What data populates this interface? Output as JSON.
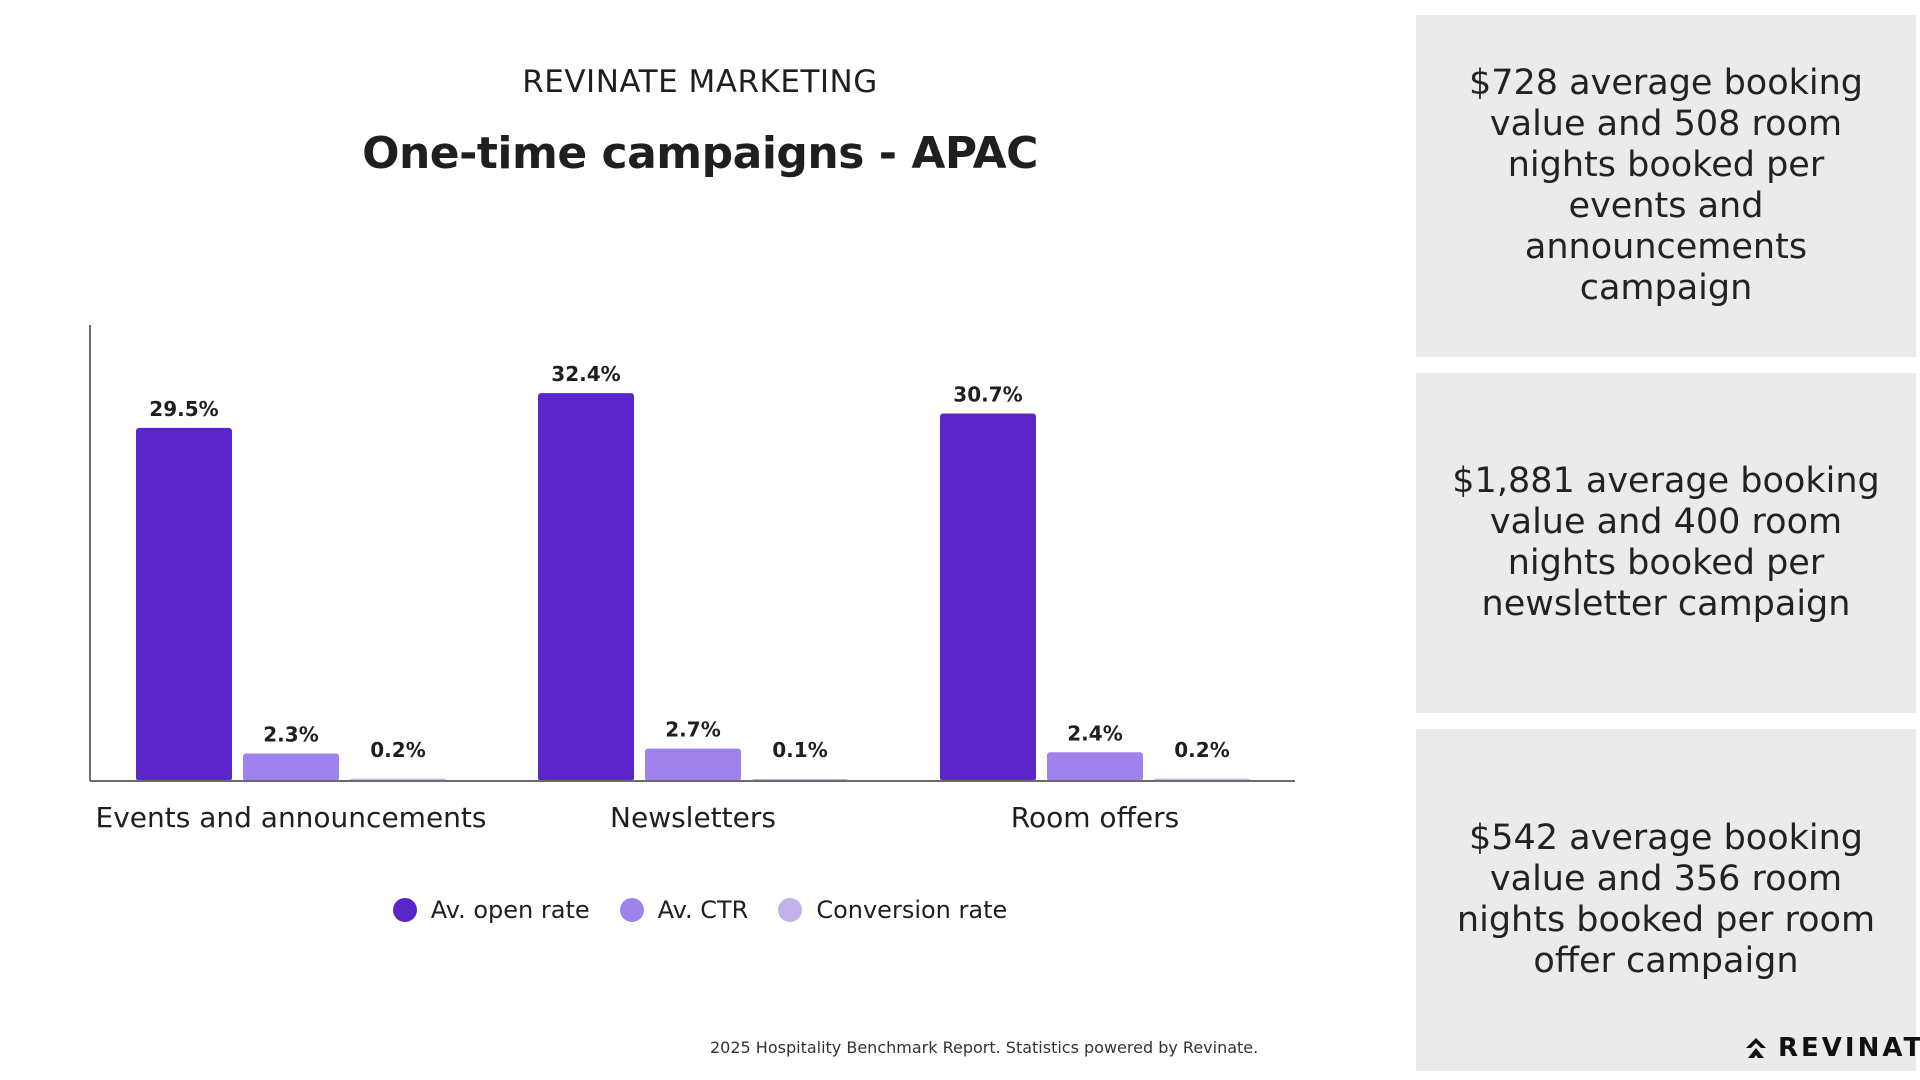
{
  "header": {
    "eyebrow": "REVINATE MARKETING",
    "title": "One-time campaigns - APAC"
  },
  "chart_data": {
    "type": "bar",
    "categories": [
      "Events and announcements",
      "Newsletters",
      "Room offers"
    ],
    "series": [
      {
        "name": "Av. open rate",
        "values": [
          29.5,
          32.4,
          30.7
        ],
        "labels": [
          "29.5%",
          "32.4%",
          "30.7%"
        ],
        "color": "#5b26c9"
      },
      {
        "name": "Av. CTR",
        "values": [
          2.3,
          2.7,
          2.4
        ],
        "labels": [
          "2.3%",
          "2.7%",
          "2.4%"
        ],
        "color": "#9f82ec"
      },
      {
        "name": "Conversion rate",
        "values": [
          0.2,
          0.1,
          0.2
        ],
        "labels": [
          "0.2%",
          "0.1%",
          "0.2%"
        ],
        "color": "#c3b2ea"
      }
    ],
    "ylim": [
      0,
      40
    ],
    "grid": false,
    "legend": "bottom-center"
  },
  "cards": [
    {
      "text": "$728 average booking value and 508 room nights booked per events and announcements campaign"
    },
    {
      "text": "$1,881 average booking value and 400 room nights booked per newsletter campaign"
    },
    {
      "text": "$542 average booking value and 356 room nights booked per room offer campaign"
    }
  ],
  "footer": "2025 Hospitality Benchmark Report. Statistics powered by Revinate.",
  "logo": {
    "text": "REVINATE",
    "icon": "revinate-logo-icon"
  }
}
